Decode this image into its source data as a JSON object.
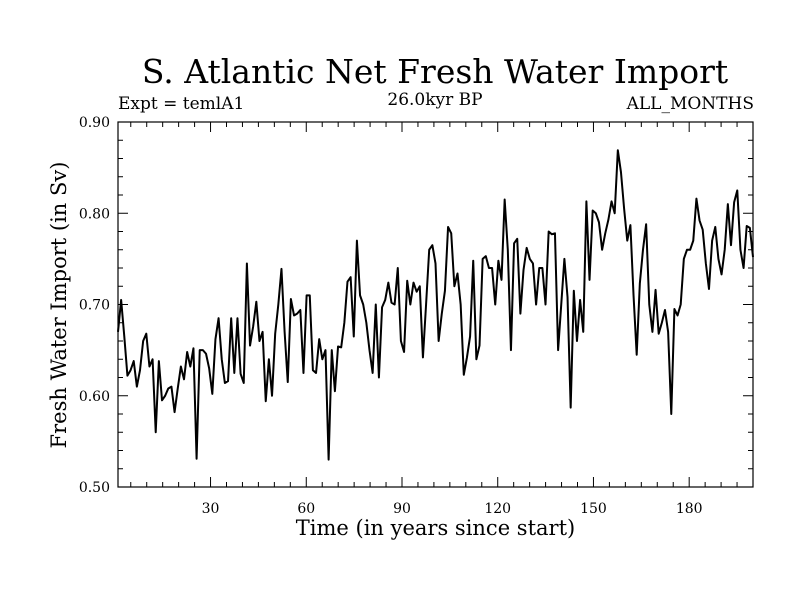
{
  "chart_data": {
    "type": "line",
    "title": "S. Atlantic Net Fresh Water Import",
    "subtitle": "26.0kyr BP",
    "expt_label": "Expt = temlA1",
    "period_label": "ALL_MONTHS",
    "xlabel": "Time (in years since start)",
    "ylabel": "Fresh Water Import (in Sv)",
    "xlim": [
      1,
      200
    ],
    "ylim": [
      0.5,
      0.9
    ],
    "xticks": [
      30,
      60,
      90,
      120,
      150,
      180
    ],
    "xtick_labels": [
      "30",
      "60",
      "90",
      "120",
      "150",
      "180"
    ],
    "yticks": [
      0.5,
      0.6,
      0.7,
      0.8,
      0.9
    ],
    "ytick_labels": [
      "0.50",
      "0.60",
      "0.70",
      "0.80",
      "0.90"
    ],
    "color": "#000000",
    "series": [
      {
        "name": "Fresh Water Import",
        "values": [
          0.67,
          0.705,
          0.665,
          0.622,
          0.628,
          0.638,
          0.61,
          0.628,
          0.66,
          0.668,
          0.632,
          0.64,
          0.56,
          0.638,
          0.595,
          0.6,
          0.608,
          0.61,
          0.582,
          0.608,
          0.632,
          0.618,
          0.648,
          0.632,
          0.652,
          0.531,
          0.65,
          0.65,
          0.646,
          0.63,
          0.602,
          0.662,
          0.685,
          0.64,
          0.614,
          0.616,
          0.685,
          0.625,
          0.685,
          0.624,
          0.614,
          0.745,
          0.655,
          0.676,
          0.703,
          0.66,
          0.67,
          0.594,
          0.64,
          0.6,
          0.668,
          0.7,
          0.739,
          0.67,
          0.615,
          0.706,
          0.688,
          0.69,
          0.694,
          0.625,
          0.71,
          0.71,
          0.628,
          0.625,
          0.662,
          0.64,
          0.65,
          0.53,
          0.65,
          0.605,
          0.654,
          0.653,
          0.68,
          0.725,
          0.73,
          0.665,
          0.77,
          0.71,
          0.7,
          0.68,
          0.65,
          0.625,
          0.7,
          0.62,
          0.697,
          0.705,
          0.724,
          0.702,
          0.7,
          0.74,
          0.66,
          0.648,
          0.726,
          0.7,
          0.724,
          0.714,
          0.72,
          0.642,
          0.7,
          0.76,
          0.765,
          0.745,
          0.66,
          0.69,
          0.715,
          0.785,
          0.778,
          0.72,
          0.734,
          0.7,
          0.623,
          0.642,
          0.665,
          0.748,
          0.64,
          0.655,
          0.75,
          0.753,
          0.74,
          0.74,
          0.7,
          0.748,
          0.727,
          0.815,
          0.76,
          0.65,
          0.767,
          0.772,
          0.69,
          0.738,
          0.762,
          0.75,
          0.745,
          0.7,
          0.74,
          0.74,
          0.7,
          0.78,
          0.777,
          0.778,
          0.65,
          0.7,
          0.75,
          0.708,
          0.587,
          0.715,
          0.66,
          0.705,
          0.67,
          0.813,
          0.727,
          0.803,
          0.8,
          0.79,
          0.76,
          0.778,
          0.793,
          0.813,
          0.8,
          0.869,
          0.845,
          0.805,
          0.77,
          0.787,
          0.71,
          0.645,
          0.723,
          0.76,
          0.788,
          0.7,
          0.67,
          0.716,
          0.668,
          0.68,
          0.694,
          0.67,
          0.58,
          0.695,
          0.688,
          0.7,
          0.75,
          0.76,
          0.76,
          0.77,
          0.816,
          0.792,
          0.782,
          0.745,
          0.717,
          0.77,
          0.785,
          0.75,
          0.733,
          0.76,
          0.81,
          0.765,
          0.812,
          0.825,
          0.76,
          0.74,
          0.786,
          0.784,
          0.752
        ]
      }
    ]
  }
}
